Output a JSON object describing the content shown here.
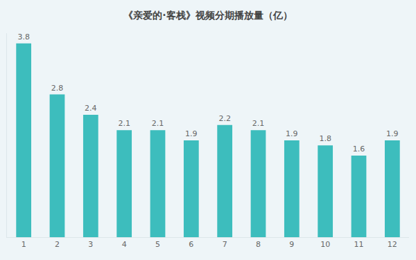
{
  "chart_data": {
    "type": "bar",
    "title": "《亲爱的·客栈》视频分期播放量（亿）",
    "categories": [
      "1",
      "2",
      "3",
      "4",
      "5",
      "6",
      "7",
      "8",
      "9",
      "10",
      "11",
      "12"
    ],
    "values": [
      3.8,
      2.8,
      2.4,
      2.1,
      2.1,
      1.9,
      2.2,
      2.1,
      1.9,
      1.8,
      1.6,
      1.9
    ],
    "color": "#3dbdbd",
    "ylim": [
      0,
      4
    ],
    "grid": false,
    "data_labels": true,
    "tick_labels": "x"
  }
}
